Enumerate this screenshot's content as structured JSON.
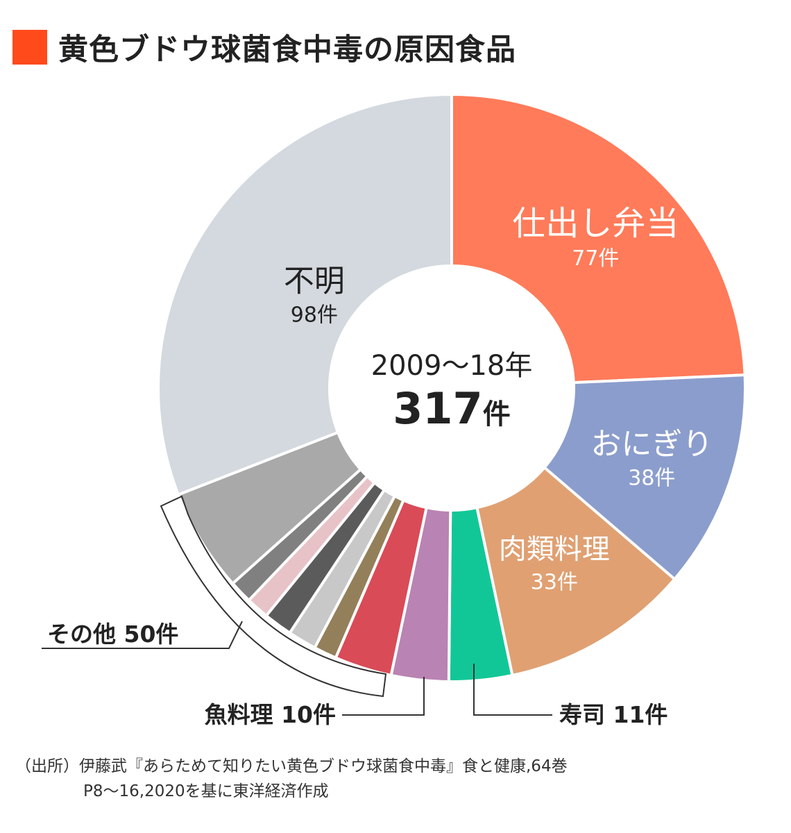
{
  "title": "黄色ブドウ球菌食中毒の原因食品",
  "title_marker_color": "#ff4a1c",
  "center": {
    "period": "2009〜18年",
    "total_value": "317",
    "total_unit": "件"
  },
  "source": {
    "line1": "（出所）伊藤武『あらためて知りたい黄色ブドウ球菌食中毒』食と健康,64巻",
    "line2": "P8〜16,2020を基に東洋経済作成"
  },
  "callouts": {
    "other": "その他 50件",
    "fish": "魚料理 10件",
    "sushi": "寿司 11件"
  },
  "chart_data": {
    "type": "pie",
    "donut": true,
    "unit": "件",
    "total": 317,
    "slices": [
      {
        "name": "仕出し弁当",
        "value": 77,
        "value_label": "77件",
        "color": "#ff7b5a"
      },
      {
        "name": "おにぎり",
        "value": 38,
        "value_label": "38件",
        "color": "#8b9dcc"
      },
      {
        "name": "肉類料理",
        "value": 33,
        "value_label": "33件",
        "color": "#e0a072"
      },
      {
        "value": 11,
        "color": "#12c797"
      },
      {
        "value": 10,
        "color": "#b983b3"
      },
      {
        "value": 10,
        "color": "#d94b57"
      },
      {
        "value": 4,
        "color": "#93805a"
      },
      {
        "value": 5,
        "color": "#c8c8c8"
      },
      {
        "value": 5,
        "color": "#5b5b5b"
      },
      {
        "value": 4,
        "color": "#e7c3c8"
      },
      {
        "value": 4,
        "color": "#808080"
      },
      {
        "value": 18,
        "color": "#a9a9a9"
      },
      {
        "name": "不明",
        "value": 98,
        "value_label": "98件",
        "color": "#d4d9df"
      }
    ]
  }
}
